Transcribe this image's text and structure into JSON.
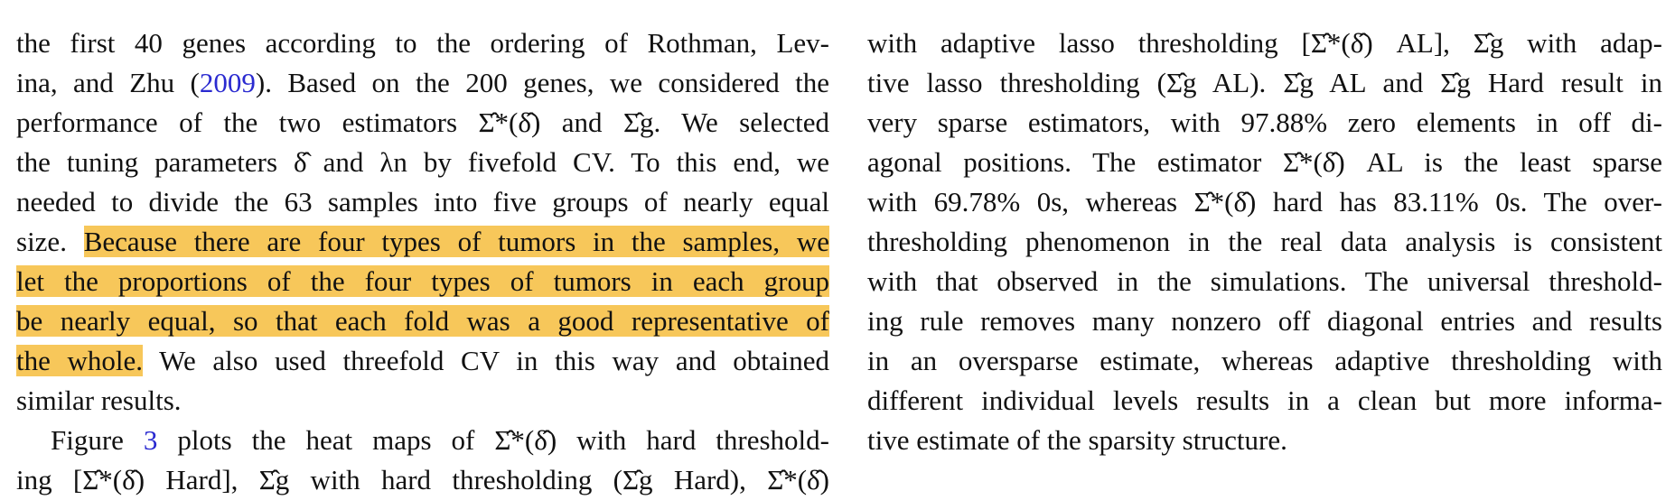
{
  "left_column": {
    "lines": [
      {
        "segments": [
          {
            "text": "the first 40 genes according to the ordering of Rothman, Lev-"
          }
        ]
      },
      {
        "segments": [
          {
            "text": "ina, and Zhu ("
          },
          {
            "text": "2009",
            "link": true
          },
          {
            "text": "). Based on the 200 genes, we considered the"
          }
        ]
      },
      {
        "segments": [
          {
            "text": "performance of the two estimators Σ̂*(δ̂) and Σ̂g. We selected"
          }
        ]
      },
      {
        "segments": [
          {
            "text": "the tuning parameters δ̂ and λn by fivefold CV. To this end, we"
          }
        ]
      },
      {
        "segments": [
          {
            "text": "needed to divide the 63 samples into five groups of nearly equal"
          }
        ]
      },
      {
        "segments": [
          {
            "text": "size. "
          },
          {
            "text": "Because there are four types of tumors in the samples, we",
            "highlight": true
          }
        ]
      },
      {
        "segments": [
          {
            "text": "let the proportions of the four types of tumors in each group",
            "highlight": true
          }
        ]
      },
      {
        "segments": [
          {
            "text": "be nearly equal, so that each fold was a good representative of",
            "highlight": true
          }
        ]
      },
      {
        "segments": [
          {
            "text": "the whole.",
            "highlight": true
          },
          {
            "text": " We also used threefold CV in this way and obtained"
          }
        ]
      },
      {
        "segments": [
          {
            "text": "similar results."
          }
        ],
        "last": true
      },
      {
        "segments": [
          {
            "text": "Figure "
          },
          {
            "text": "3",
            "link": true
          },
          {
            "text": " plots the heat maps of Σ̂*(δ̂) with hard threshold-"
          }
        ],
        "indent": true
      },
      {
        "segments": [
          {
            "text": "ing [Σ̂*(δ̂) Hard], Σ̂g with hard thresholding (Σ̂g Hard), Σ̂*(δ̂)"
          }
        ]
      }
    ]
  },
  "right_column": {
    "lines": [
      {
        "segments": [
          {
            "text": "with adaptive lasso thresholding [Σ̂*(δ̂) AL], Σ̂g with adap-"
          }
        ]
      },
      {
        "segments": [
          {
            "text": "tive lasso thresholding (Σ̂g AL). Σ̂g AL and Σ̂g Hard result in"
          }
        ]
      },
      {
        "segments": [
          {
            "text": "very sparse estimators, with 97.88% zero elements in off di-"
          }
        ]
      },
      {
        "segments": [
          {
            "text": "agonal positions. The estimator Σ̂*(δ̂) AL is the least sparse"
          }
        ]
      },
      {
        "segments": [
          {
            "text": "with 69.78% 0s, whereas Σ̂*(δ̂) hard has 83.11% 0s. The over-"
          }
        ]
      },
      {
        "segments": [
          {
            "text": "thresholding phenomenon in the real data analysis is consistent"
          }
        ]
      },
      {
        "segments": [
          {
            "text": "with that observed in the simulations. The universal threshold-"
          }
        ]
      },
      {
        "segments": [
          {
            "text": "ing rule removes many nonzero off diagonal entries and results"
          }
        ]
      },
      {
        "segments": [
          {
            "text": "in an oversparse estimate, whereas adaptive thresholding with"
          }
        ]
      },
      {
        "segments": [
          {
            "text": "different individual levels results in a clean but more informa-"
          }
        ]
      },
      {
        "segments": [
          {
            "text": "tive estimate of the sparsity structure."
          }
        ],
        "last": true
      }
    ]
  },
  "colors": {
    "highlight": "#f7c75a",
    "link": "#2a2ad0",
    "text": "#111111"
  }
}
